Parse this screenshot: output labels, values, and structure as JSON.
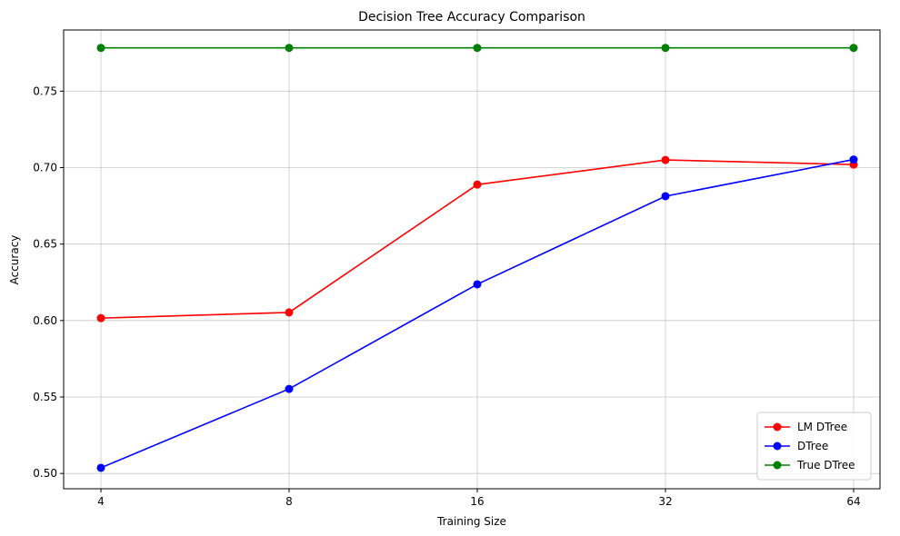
{
  "chart_data": {
    "type": "line",
    "title": "Decision Tree Accuracy Comparison",
    "xlabel": "Training Size",
    "ylabel": "Accuracy",
    "categories": [
      "4",
      "8",
      "16",
      "32",
      "64"
    ],
    "ylim": [
      0.49,
      0.79
    ],
    "yticks": [
      "0.50",
      "0.55",
      "0.60",
      "0.65",
      "0.70",
      "0.75"
    ],
    "ytick_values": [
      0.5,
      0.55,
      0.6,
      0.65,
      0.7,
      0.75
    ],
    "grid": true,
    "legend_position": "bottom-right",
    "series": [
      {
        "name": "LM DTree",
        "color": "#ff0000",
        "values": [
          0.6016,
          0.6053,
          0.6889,
          0.705,
          0.702
        ]
      },
      {
        "name": "DTree",
        "color": "#0000ff",
        "values": [
          0.5037,
          0.5553,
          0.6237,
          0.6813,
          0.7053
        ]
      },
      {
        "name": "True DTree",
        "color": "#008000",
        "values": [
          0.7783,
          0.7783,
          0.7783,
          0.7783,
          0.7783
        ]
      }
    ]
  }
}
